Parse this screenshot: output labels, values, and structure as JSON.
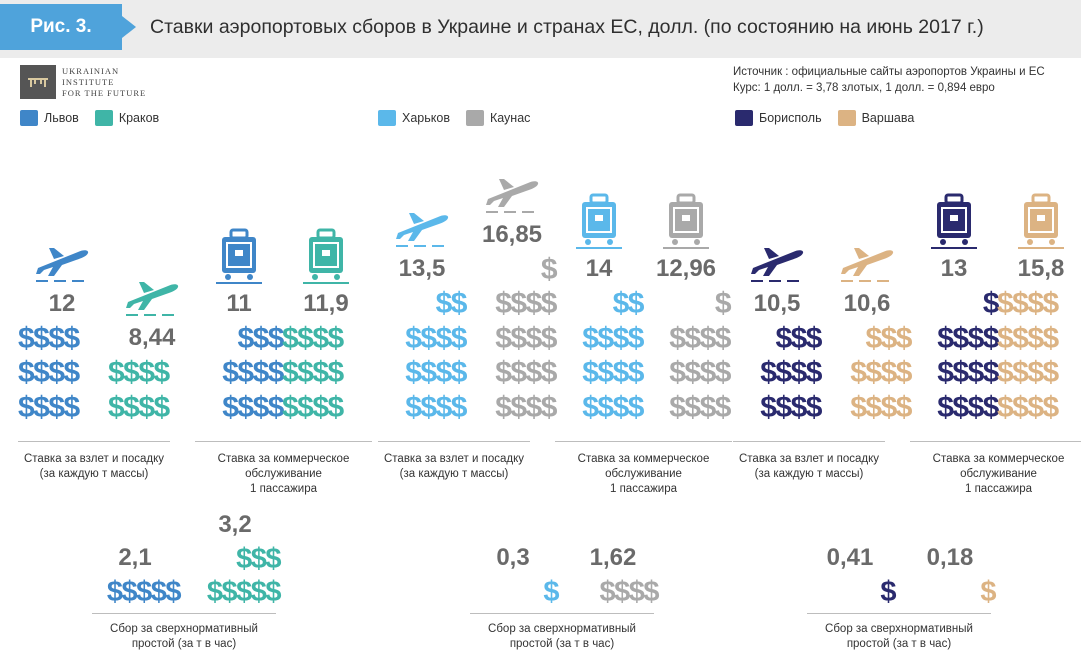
{
  "figure_label": "Рис. 3.",
  "title": "Ставки аэропортовых сборов в Украине и странах ЕС, долл. (по состоянию на июнь 2017 г.)",
  "logo": {
    "lines": [
      "UKRAINIAN",
      "INSTITUTE",
      "FOR THE FUTURE"
    ]
  },
  "source_lines": [
    "Источник : официальные сайты аэропортов Украины и ЕС",
    "Курс: 1 долл. = 3,78 злотых, 1 долл. = 0,894 евро"
  ],
  "colors": {
    "lviv": "#3f86c8",
    "krakow": "#3fb5a7",
    "kharkiv": "#5bb8ea",
    "kaunas": "#a9a9a9",
    "boryspil": "#2a2a6e",
    "warsaw": "#dcb383",
    "header_bg": "#ececec",
    "tab": "#4fa3db",
    "value_text": "#6a6a6a"
  },
  "legends": [
    {
      "items": [
        {
          "label": "Львов",
          "color_key": "lviv"
        },
        {
          "label": "Краков",
          "color_key": "krakow"
        }
      ]
    },
    {
      "items": [
        {
          "label": "Харьков",
          "color_key": "kharkiv"
        },
        {
          "label": "Каунас",
          "color_key": "kaunas"
        }
      ]
    },
    {
      "items": [
        {
          "label": "Борисполь",
          "color_key": "boryspil"
        },
        {
          "label": "Варшава",
          "color_key": "warsaw"
        }
      ]
    }
  ],
  "captions": {
    "takeoff": "Ставка за взлет и посадку\n(за каждую т массы)",
    "service": "Ставка за коммерческое\nобслуживание\n1 пассажира",
    "parking": "Сбор за сверхнормативный\nпростой (за т в час)"
  },
  "chart_data": {
    "type": "pictograph",
    "unit": "долл.",
    "groups": [
      {
        "pair": [
          "Львов",
          "Краков"
        ],
        "takeoff_landing": [
          12,
          8.44
        ],
        "takeoff_landing_labels": [
          "12",
          "8,44"
        ],
        "passenger_service": [
          11,
          11.9
        ],
        "passenger_service_labels": [
          "11",
          "11,9"
        ],
        "excess_parking": [
          2.1,
          3.2
        ],
        "excess_parking_labels": [
          "2,1",
          "3,2"
        ]
      },
      {
        "pair": [
          "Харьков",
          "Каунас"
        ],
        "takeoff_landing": [
          13.5,
          16.85
        ],
        "takeoff_landing_labels": [
          "13,5",
          "16,85"
        ],
        "passenger_service": [
          14,
          12.96
        ],
        "passenger_service_labels": [
          "14",
          "12,96"
        ],
        "excess_parking": [
          0.3,
          1.62
        ],
        "excess_parking_labels": [
          "0,3",
          "1,62"
        ]
      },
      {
        "pair": [
          "Борисполь",
          "Варшава"
        ],
        "takeoff_landing": [
          10.5,
          10.6
        ],
        "takeoff_landing_labels": [
          "10,5",
          "10,6"
        ],
        "passenger_service": [
          13,
          15.8
        ],
        "passenger_service_labels": [
          "13",
          "15,8"
        ],
        "excess_parking": [
          0.41,
          0.18
        ],
        "excess_parking_labels": [
          "0,41",
          "0,18"
        ]
      }
    ]
  }
}
